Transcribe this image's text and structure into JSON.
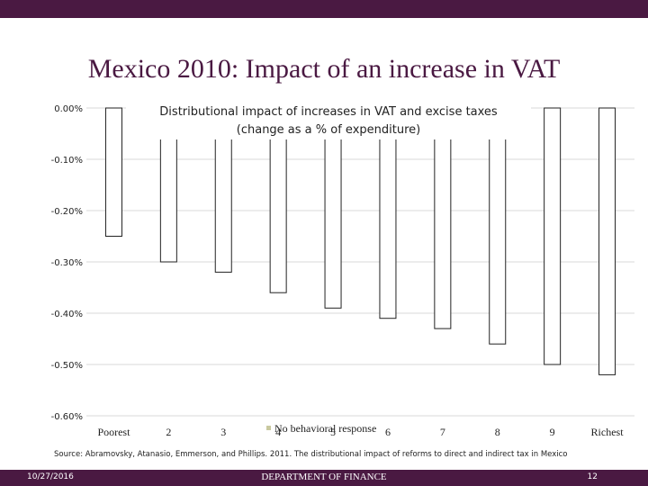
{
  "slide": {
    "title": "Mexico 2010: Impact of an increase in VAT",
    "source": "Source: Abramovsky, Atanasio, Emmerson, and Phillips. 2011. The distributional impact of reforms to direct and indirect tax in Mexico",
    "footer_date": "10/27/2016",
    "footer_dept": "DEPARTMENT OF FINANCE",
    "footer_page": "12"
  },
  "colors": {
    "accent": "#4a1942",
    "bar_fill": "#ffffff",
    "bar_stroke": "#222222",
    "legend_swatch": "#c9c9a0"
  },
  "chart_data": {
    "type": "bar",
    "title_line1": "Distributional impact of increases in VAT and excise taxes",
    "title_line2": "(change as a % of expenditure)",
    "categories": [
      "Poorest",
      "2",
      "3",
      "4",
      "5",
      "6",
      "7",
      "8",
      "9",
      "Richest"
    ],
    "series": [
      {
        "name": "No behavioral response",
        "values": [
          -0.25,
          -0.3,
          -0.32,
          -0.36,
          -0.39,
          -0.41,
          -0.43,
          -0.46,
          -0.5,
          -0.52
        ]
      }
    ],
    "yticks": [
      "0.00%",
      "-0.10%",
      "-0.20%",
      "-0.30%",
      "-0.40%",
      "-0.50%",
      "-0.60%"
    ],
    "ylim": [
      -0.6,
      0.0
    ],
    "grid": true,
    "legend_position": "bottom"
  }
}
